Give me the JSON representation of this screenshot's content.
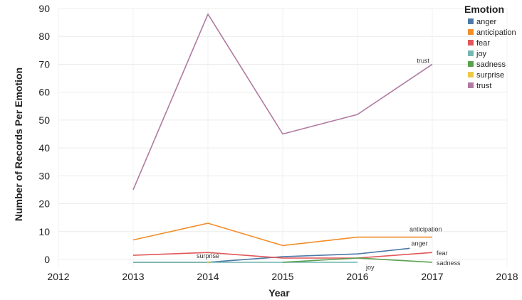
{
  "chart_data": {
    "type": "line",
    "xlabel": "Year",
    "ylabel": "Number of Records Per Emotion",
    "xlim": [
      2012,
      2018
    ],
    "ylim": [
      -2,
      90
    ],
    "x_ticks": [
      "2012",
      "2013",
      "2014",
      "2015",
      "2016",
      "2017",
      "2018"
    ],
    "y_ticks": [
      "0",
      "10",
      "20",
      "30",
      "40",
      "50",
      "60",
      "70",
      "80",
      "90"
    ],
    "grid": true,
    "legend": {
      "title": "Emotion",
      "position": "top-right",
      "entries": [
        "anger",
        "anticipation",
        "fear",
        "joy",
        "sadness",
        "surprise",
        "trust"
      ]
    },
    "series": [
      {
        "name": "anger",
        "color": "#4e79a7",
        "x": [
          2013,
          2014,
          2015,
          2016,
          2016.7
        ],
        "y": [
          -1,
          -1,
          1,
          2,
          4
        ],
        "label": "anger"
      },
      {
        "name": "anticipation",
        "color": "#f28e2b",
        "x": [
          2013,
          2014,
          2015,
          2016,
          2017
        ],
        "y": [
          7,
          13,
          5,
          8,
          8
        ],
        "label": "anticipation"
      },
      {
        "name": "fear",
        "color": "#e15759",
        "x": [
          2013,
          2014,
          2015,
          2016,
          2017
        ],
        "y": [
          1.5,
          2.5,
          0.5,
          0.5,
          2.5
        ],
        "label": "fear"
      },
      {
        "name": "joy",
        "color": "#76b7b2",
        "x": [
          2013,
          2014,
          2015,
          2016
        ],
        "y": [
          -1,
          -1,
          -1,
          -1
        ],
        "label": "joy"
      },
      {
        "name": "sadness",
        "color": "#59a14f",
        "x": [
          2015,
          2016,
          2017
        ],
        "y": [
          -1,
          0.5,
          -1
        ],
        "label": "sadness"
      },
      {
        "name": "surprise",
        "color": "#edc948",
        "x": [
          2014
        ],
        "y": [
          -1
        ],
        "label": "surprise"
      },
      {
        "name": "trust",
        "color": "#b07aa1",
        "x": [
          2013,
          2014,
          2015,
          2016,
          2017
        ],
        "y": [
          25,
          88,
          45,
          52,
          70
        ],
        "label": "trust"
      }
    ]
  }
}
